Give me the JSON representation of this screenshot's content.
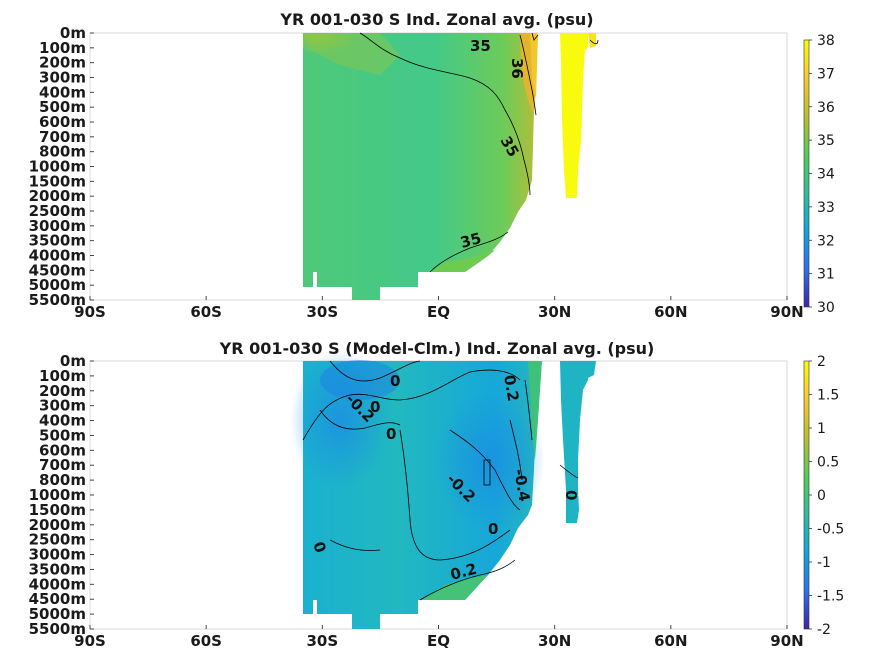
{
  "chart_data": [
    {
      "type": "heatmap",
      "title": "YR 001-030 S Ind. Zonal avg. (psu)",
      "x_ticks": [
        "90S",
        "60S",
        "30S",
        "EQ",
        "30N",
        "60N",
        "90N"
      ],
      "x_range": [
        -90,
        90
      ],
      "y_ticks": [
        "0m",
        "100m",
        "200m",
        "300m",
        "400m",
        "500m",
        "600m",
        "700m",
        "800m",
        "1000m",
        "1500m",
        "2000m",
        "2500m",
        "3000m",
        "3500m",
        "4000m",
        "4500m",
        "5000m",
        "5500m"
      ],
      "colorbar": {
        "range": [
          30,
          38
        ],
        "ticks": [
          "30",
          "31",
          "32",
          "33",
          "34",
          "35",
          "36",
          "37",
          "38"
        ]
      },
      "colormap": [
        "#3e26a8",
        "#2e6ff3",
        "#10a6d9",
        "#34bc9d",
        "#54cc5a",
        "#bcbd32",
        "#f7c82e",
        "#f9fb0e"
      ],
      "contour_labels": [
        "35",
        "36",
        "35",
        "35"
      ],
      "data_extent_lat": [
        -35,
        42
      ]
    },
    {
      "type": "heatmap",
      "title": "YR 001-030 S (Model-Clm.) Ind. Zonal avg. (psu)",
      "x_ticks": [
        "90S",
        "60S",
        "30S",
        "EQ",
        "30N",
        "60N",
        "90N"
      ],
      "x_range": [
        -90,
        90
      ],
      "y_ticks": [
        "0m",
        "100m",
        "200m",
        "300m",
        "400m",
        "500m",
        "600m",
        "700m",
        "800m",
        "1000m",
        "1500m",
        "2000m",
        "2500m",
        "3000m",
        "3500m",
        "4000m",
        "4500m",
        "5000m",
        "5500m"
      ],
      "colorbar": {
        "range": [
          -2,
          2
        ],
        "ticks": [
          "-2",
          "-1.5",
          "-1",
          "-0.5",
          "0",
          "0.5",
          "1",
          "1.5",
          "2"
        ]
      },
      "colormap": [
        "#3e26a8",
        "#2e6ff3",
        "#10a6d9",
        "#34bc9d",
        "#54cc5a",
        "#bcbd32",
        "#f7c82e",
        "#f9fb0e"
      ],
      "contour_labels": [
        "0",
        "-0.2",
        "0",
        "0",
        "0.2",
        "-0.2",
        "-0.4",
        "0",
        "0",
        "0",
        "0.2"
      ],
      "data_extent_lat": [
        -35,
        42
      ]
    }
  ]
}
